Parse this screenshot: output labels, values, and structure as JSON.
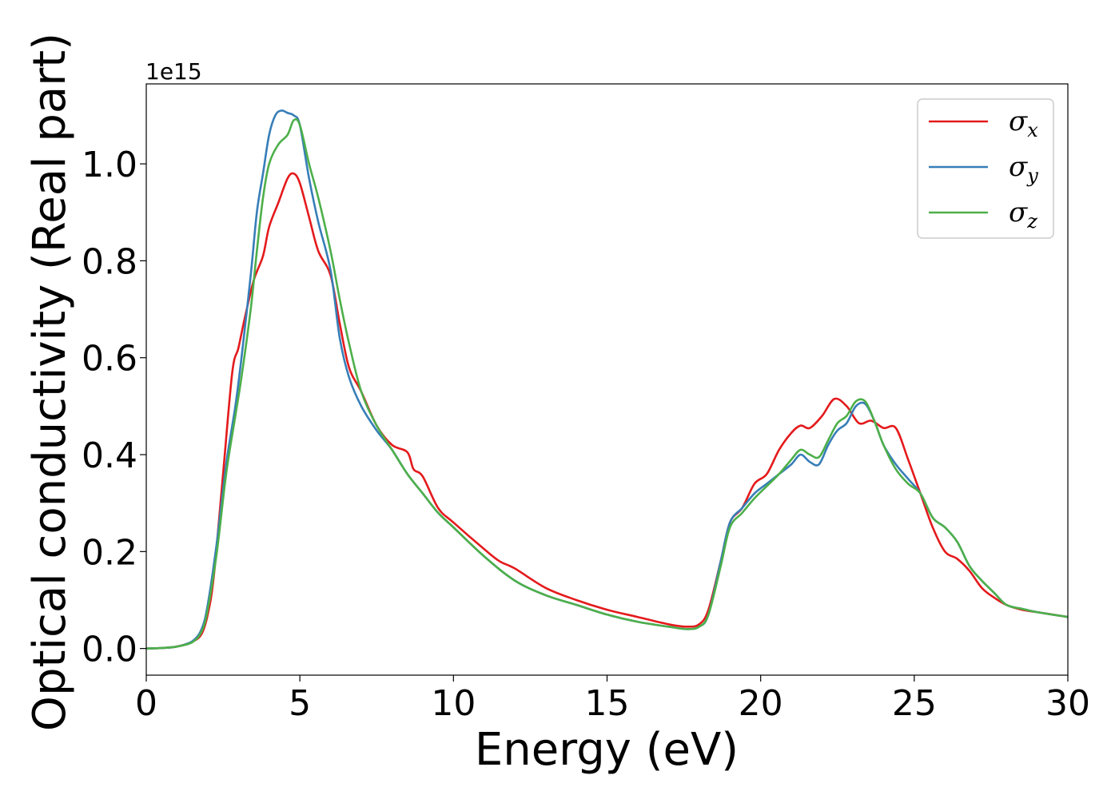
{
  "chart_data": {
    "type": "line",
    "xlabel": "Energy (eV)",
    "ylabel": "Optical conductivity (Real part)",
    "y_offset_text": "1e15",
    "xlim": [
      0,
      30
    ],
    "ylim": [
      -0.055,
      1.165
    ],
    "xticks": [
      0,
      5,
      10,
      15,
      20,
      25,
      30
    ],
    "xtick_labels": [
      "0",
      "5",
      "10",
      "15",
      "20",
      "25",
      "30"
    ],
    "yticks": [
      0.0,
      0.2,
      0.4,
      0.6,
      0.8,
      1.0
    ],
    "ytick_labels": [
      "0.0",
      "0.2",
      "0.4",
      "0.6",
      "0.8",
      "1.0"
    ],
    "grid": false,
    "legend_position": "top-right",
    "series": [
      {
        "key": "x",
        "symbol": "σ",
        "subscript": "x",
        "color": "#e41a1c",
        "x": [
          0,
          0.5,
          1,
          1.5,
          1.8,
          2.0,
          2.2,
          2.5,
          2.8,
          3.0,
          3.2,
          3.5,
          3.8,
          4.0,
          4.3,
          4.6,
          4.8,
          5.0,
          5.3,
          5.6,
          6.0,
          6.3,
          6.6,
          7.0,
          7.5,
          8.0,
          8.5,
          8.7,
          9.0,
          9.5,
          10,
          11,
          11.5,
          12,
          13,
          14,
          15,
          16,
          17,
          17.6,
          18.0,
          18.3,
          18.7,
          19.0,
          19.4,
          19.8,
          20.2,
          20.6,
          21.0,
          21.3,
          21.6,
          22.0,
          22.4,
          22.8,
          23.2,
          23.6,
          24.0,
          24.4,
          24.8,
          25.2,
          25.6,
          26.0,
          26.4,
          26.8,
          27.2,
          27.6,
          28.0,
          28.5,
          29,
          30
        ],
        "values": [
          0.0,
          0.001,
          0.004,
          0.014,
          0.03,
          0.07,
          0.15,
          0.36,
          0.57,
          0.62,
          0.68,
          0.76,
          0.81,
          0.87,
          0.92,
          0.97,
          0.98,
          0.96,
          0.89,
          0.82,
          0.77,
          0.67,
          0.58,
          0.53,
          0.46,
          0.42,
          0.405,
          0.37,
          0.355,
          0.29,
          0.26,
          0.205,
          0.18,
          0.165,
          0.125,
          0.1,
          0.08,
          0.065,
          0.05,
          0.045,
          0.05,
          0.08,
          0.18,
          0.26,
          0.29,
          0.34,
          0.36,
          0.41,
          0.445,
          0.46,
          0.455,
          0.48,
          0.515,
          0.5,
          0.465,
          0.47,
          0.455,
          0.455,
          0.39,
          0.32,
          0.25,
          0.2,
          0.185,
          0.16,
          0.125,
          0.105,
          0.09,
          0.08,
          0.075,
          0.065
        ]
      },
      {
        "key": "y",
        "symbol": "σ",
        "subscript": "y",
        "color": "#377eb8",
        "x": [
          0,
          0.5,
          1,
          1.5,
          1.8,
          2.0,
          2.3,
          2.6,
          2.9,
          3.1,
          3.4,
          3.6,
          3.8,
          4.0,
          4.2,
          4.4,
          4.6,
          4.8,
          5.0,
          5.3,
          5.6,
          6.0,
          6.3,
          6.6,
          7.0,
          7.5,
          8.0,
          8.5,
          9.0,
          9.5,
          10,
          11,
          12,
          13,
          14,
          15,
          16,
          17,
          17.6,
          18.0,
          18.3,
          18.7,
          19.0,
          19.4,
          19.8,
          20.2,
          20.6,
          21.0,
          21.3,
          21.6,
          21.9,
          22.2,
          22.5,
          22.8,
          23.1,
          23.4,
          23.7,
          24.0,
          24.4,
          24.8,
          25.2,
          25.6,
          26.0,
          26.4,
          26.8,
          27.2,
          27.6,
          28.0,
          28.5,
          29,
          30
        ],
        "values": [
          0.0,
          0.001,
          0.004,
          0.015,
          0.04,
          0.09,
          0.22,
          0.38,
          0.5,
          0.6,
          0.77,
          0.9,
          0.98,
          1.06,
          1.1,
          1.11,
          1.105,
          1.1,
          1.08,
          0.97,
          0.88,
          0.78,
          0.64,
          0.56,
          0.5,
          0.45,
          0.41,
          0.36,
          0.32,
          0.28,
          0.25,
          0.19,
          0.14,
          0.11,
          0.09,
          0.07,
          0.055,
          0.045,
          0.04,
          0.045,
          0.07,
          0.18,
          0.26,
          0.29,
          0.32,
          0.34,
          0.36,
          0.38,
          0.4,
          0.385,
          0.38,
          0.42,
          0.45,
          0.465,
          0.5,
          0.505,
          0.47,
          0.42,
          0.38,
          0.35,
          0.32,
          0.27,
          0.25,
          0.22,
          0.17,
          0.14,
          0.115,
          0.09,
          0.082,
          0.075,
          0.065
        ]
      },
      {
        "key": "z",
        "symbol": "σ",
        "subscript": "z",
        "color": "#4daf4a",
        "x": [
          0,
          0.5,
          1,
          1.5,
          1.8,
          2.0,
          2.3,
          2.6,
          2.9,
          3.1,
          3.4,
          3.6,
          3.8,
          4.0,
          4.3,
          4.6,
          4.8,
          5.0,
          5.3,
          5.6,
          6.0,
          6.3,
          6.6,
          7.0,
          7.5,
          8.0,
          8.5,
          9.0,
          9.5,
          10,
          11,
          12,
          13,
          14,
          15,
          16,
          17,
          17.6,
          18.0,
          18.3,
          18.7,
          19.0,
          19.4,
          19.8,
          20.2,
          20.6,
          21.0,
          21.3,
          21.6,
          21.9,
          22.2,
          22.5,
          22.8,
          23.1,
          23.4,
          23.7,
          24.0,
          24.4,
          24.8,
          25.2,
          25.6,
          26.0,
          26.4,
          26.8,
          27.2,
          27.6,
          28.0,
          28.5,
          29,
          30
        ],
        "values": [
          0.0,
          0.001,
          0.004,
          0.013,
          0.035,
          0.08,
          0.2,
          0.36,
          0.48,
          0.56,
          0.7,
          0.82,
          0.93,
          1.0,
          1.04,
          1.06,
          1.09,
          1.08,
          1.0,
          0.93,
          0.82,
          0.72,
          0.63,
          0.53,
          0.46,
          0.41,
          0.36,
          0.32,
          0.28,
          0.25,
          0.19,
          0.14,
          0.11,
          0.09,
          0.07,
          0.055,
          0.045,
          0.04,
          0.045,
          0.07,
          0.17,
          0.25,
          0.28,
          0.31,
          0.335,
          0.36,
          0.39,
          0.41,
          0.4,
          0.395,
          0.43,
          0.465,
          0.48,
          0.51,
          0.51,
          0.47,
          0.42,
          0.37,
          0.34,
          0.32,
          0.27,
          0.25,
          0.22,
          0.17,
          0.14,
          0.115,
          0.09,
          0.082,
          0.075,
          0.065
        ]
      }
    ]
  }
}
